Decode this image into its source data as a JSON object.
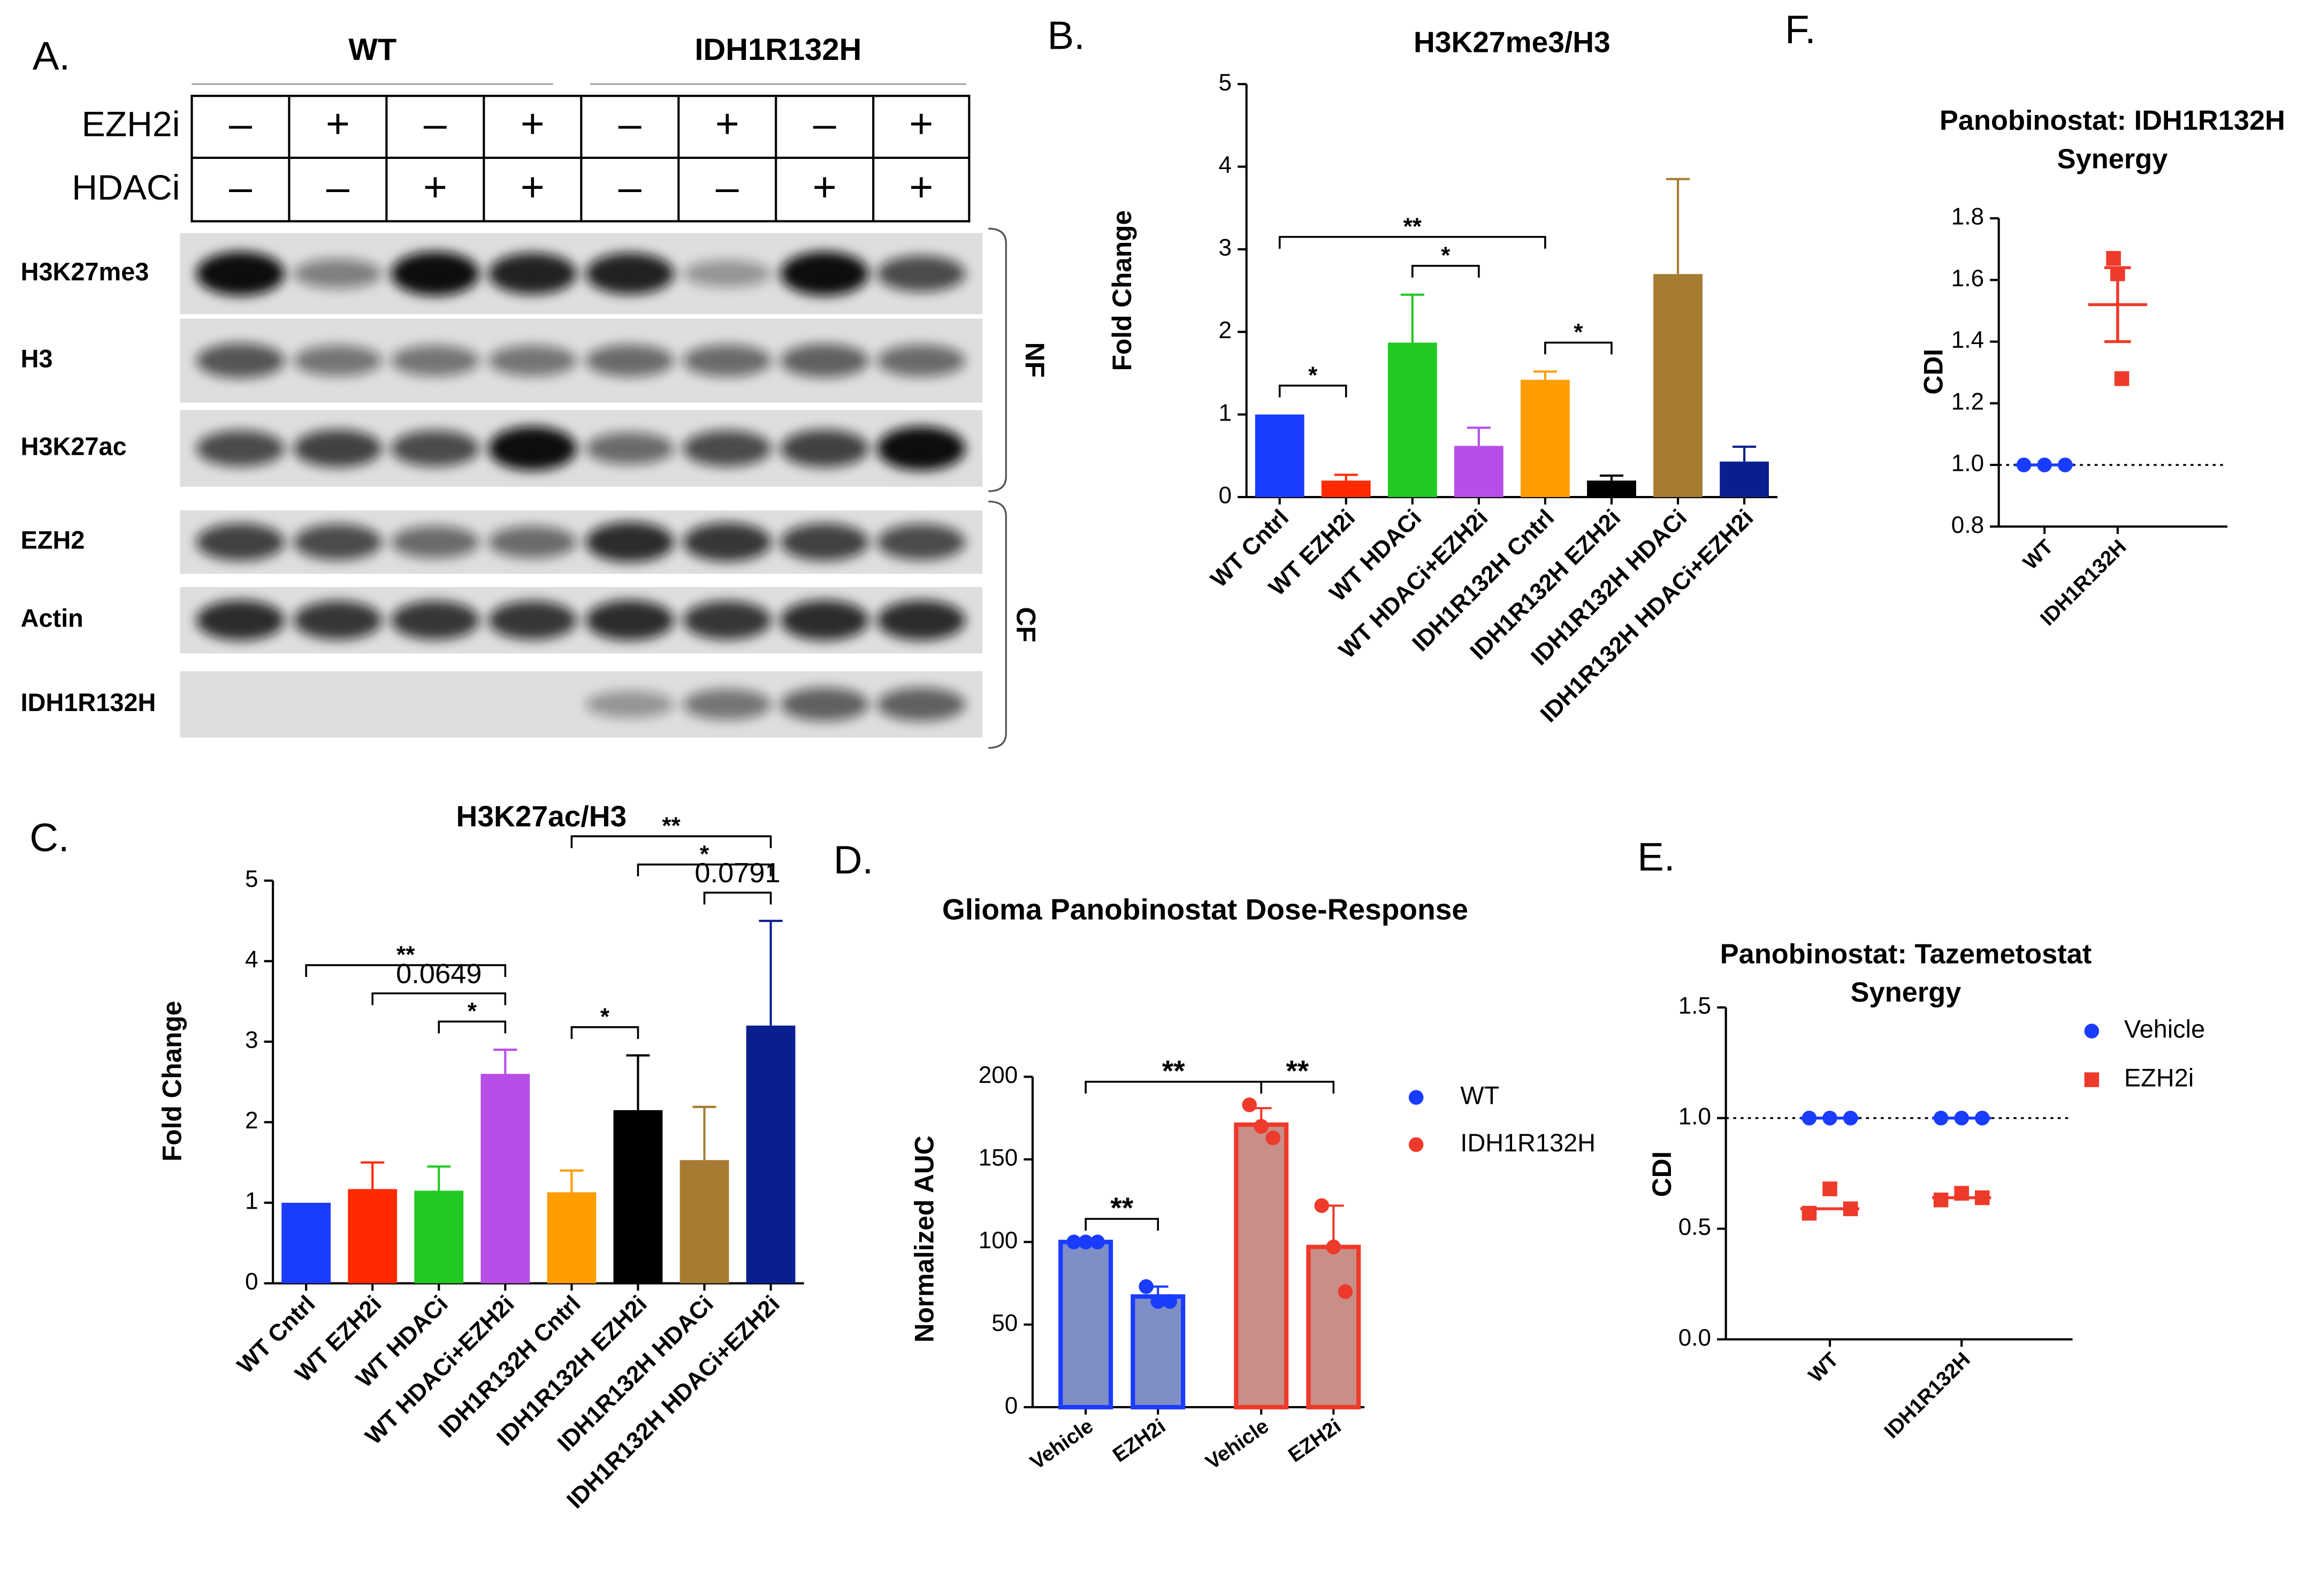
{
  "blot": {
    "panel_label": "A.",
    "groups": [
      "WT",
      "IDH1R132H"
    ],
    "treatments": [
      {
        "name": "EZH2i",
        "signs": [
          "–",
          "+",
          "–",
          "+",
          "–",
          "+",
          "–",
          "+"
        ]
      },
      {
        "name": "HDACi",
        "signs": [
          "–",
          "–",
          "+",
          "+",
          "–",
          "–",
          "+",
          "+"
        ]
      }
    ],
    "rows": [
      "H3K27me3",
      "H3",
      "H3K27ac",
      "EZH2",
      "Actin",
      "IDH1R132H"
    ],
    "fractions": [
      "NF",
      "CF"
    ]
  },
  "chart_data": [
    {
      "type": "bar",
      "panel_label": "B.",
      "title": "H3K27me3/H3",
      "y_label": "Fold Change",
      "categories": [
        "WT Cntrl",
        "WT EZH2i",
        "WT HDACi",
        "WT HDACi+EZH2i",
        "IDH1R132H Cntrl",
        "IDH1R132H EZH2i",
        "IDH1R132H HDACi",
        "IDH1R132H HDACi+EZH2i"
      ],
      "values": [
        1.0,
        0.2,
        1.87,
        0.62,
        1.42,
        0.2,
        2.7,
        0.43
      ],
      "errors": [
        null,
        0.07,
        0.58,
        0.22,
        0.1,
        0.06,
        1.15,
        0.18
      ],
      "colors": [
        "#1a3cff",
        "#ff2a00",
        "#22c922",
        "#b84ee8",
        "#ff9d00",
        "#000000",
        "#a67c33",
        "#0a1f8f"
      ],
      "ylim": [
        0,
        5
      ],
      "yticks": [
        0,
        1,
        2,
        3,
        4,
        5
      ],
      "brackets": [
        {
          "from": 0,
          "to": 1,
          "label": "*"
        },
        {
          "from": 0,
          "to": 4,
          "label": "**"
        },
        {
          "from": 2,
          "to": 3,
          "label": "*"
        },
        {
          "from": 4,
          "to": 5,
          "label": "*"
        }
      ]
    },
    {
      "type": "bar",
      "panel_label": "C.",
      "title": "H3K27ac/H3",
      "y_label": "Fold Change",
      "categories": [
        "WT Cntrl",
        "WT EZH2i",
        "WT HDACi",
        "WT HDACi+EZH2i",
        "IDH1R132H Cntrl",
        "IDH1R132H EZH2i",
        "IDH1R132H HDACi",
        "IDH1R132H HDACi+EZH2i"
      ],
      "values": [
        1.0,
        1.17,
        1.15,
        2.6,
        1.13,
        2.15,
        1.53,
        3.2
      ],
      "errors": [
        null,
        0.33,
        0.3,
        0.3,
        0.27,
        0.68,
        0.66,
        1.3
      ],
      "colors": [
        "#1a3cff",
        "#ff2a00",
        "#22c922",
        "#b84ee8",
        "#ff9d00",
        "#000000",
        "#a67c33",
        "#0a1f8f"
      ],
      "ylim": [
        0,
        5
      ],
      "yticks": [
        0,
        1,
        2,
        3,
        4,
        5
      ],
      "brackets": [
        {
          "from": 0,
          "to": 3,
          "label": "**"
        },
        {
          "from": 1,
          "to": 3,
          "label": "0.0649"
        },
        {
          "from": 2,
          "to": 3,
          "label": "*"
        },
        {
          "from": 4,
          "to": 5,
          "label": "*"
        },
        {
          "from": 4,
          "to": 7,
          "label": "**"
        },
        {
          "from": 5,
          "to": 7,
          "label": "*"
        },
        {
          "from": 6,
          "to": 7,
          "label": "0.0791"
        }
      ]
    },
    {
      "type": "bar_scatter",
      "panel_label": "D.",
      "title": "Glioma Panobinostat Dose-Response",
      "y_label": "Normalized  AUC",
      "categories": [
        "Vehicle",
        "EZH2i",
        "Vehicle",
        "EZH2i"
      ],
      "series": [
        {
          "name": "WT",
          "color": "#1a3cff",
          "fill_color": "#7f8fc6",
          "values": [
            100,
            67,
            null,
            null
          ],
          "errors": [
            null,
            6,
            null,
            null
          ],
          "points": [
            [
              100,
              100,
              100
            ],
            [
              73,
              64,
              64
            ],
            null,
            null
          ]
        },
        {
          "name": "IDH1R132H",
          "color": "#ee3a2a",
          "fill_color": "#c98e88",
          "values": [
            null,
            null,
            171,
            97
          ],
          "errors": [
            null,
            null,
            10,
            25
          ],
          "points": [
            null,
            null,
            [
              183,
              170,
              163
            ],
            [
              122,
              97,
              70
            ]
          ]
        }
      ],
      "ylim": [
        0,
        200
      ],
      "yticks": [
        0,
        50,
        100,
        150,
        200
      ],
      "brackets": [
        {
          "from": 0,
          "to": 2,
          "label": "**"
        },
        {
          "from": 0,
          "to": 1,
          "label": "**"
        },
        {
          "from": 2,
          "to": 3,
          "label": "**"
        }
      ]
    },
    {
      "type": "dot",
      "panel_label": "E.",
      "title": [
        "Panobinostat: Tazemetostat",
        "Synergy"
      ],
      "y_label": "CDI",
      "categories": [
        "WT",
        "IDH1R132H"
      ],
      "series": [
        {
          "name": "Vehicle",
          "color": "#1a3cff",
          "marker": "circle",
          "points": [
            [
              1,
              1,
              1
            ],
            [
              1,
              1,
              1
            ]
          ],
          "means": [
            1,
            1
          ]
        },
        {
          "name": "EZH2i",
          "color": "#ee3a2a",
          "marker": "square",
          "points": [
            [
              0.57,
              0.68,
              0.59
            ],
            [
              0.63,
              0.66,
              0.64
            ]
          ],
          "means": [
            0.59,
            0.64
          ]
        }
      ],
      "ylim": [
        0,
        1.5
      ],
      "yticks": [
        {
          "value": 0,
          "label": "0.0"
        },
        0.5,
        {
          "value": 1,
          "label": "1.0"
        },
        1.5
      ],
      "reference_line": 1.0,
      "legend": "right"
    },
    {
      "type": "dot",
      "panel_label": "F.",
      "title": [
        "Panobinostat: IDH1R132H",
        "Synergy"
      ],
      "y_label": "CDI",
      "categories": [
        "WT",
        "IDH1R132H"
      ],
      "series": [
        {
          "color": "#1a3cff",
          "marker": "circle",
          "points": [
            [
              1,
              1,
              1
            ],
            null
          ],
          "means": [
            1,
            null
          ]
        },
        {
          "color": "#ee3a2a",
          "marker": "square",
          "points": [
            null,
            [
              1.67,
              1.62,
              1.28
            ]
          ],
          "means": [
            null,
            1.52
          ],
          "errors": [
            null,
            0.12
          ]
        }
      ],
      "ylim": [
        0.8,
        1.8
      ],
      "yticks": [
        0.8,
        {
          "value": 1,
          "label": "1.0"
        },
        1.2,
        1.4,
        1.6,
        1.8
      ],
      "reference_line": 1.0
    }
  ]
}
